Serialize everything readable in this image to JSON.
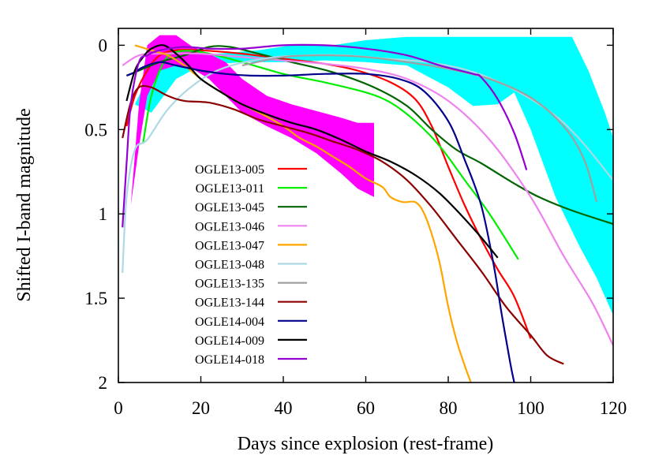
{
  "chart_data": {
    "type": "line",
    "xlabel": "Days since explosion (rest-frame)",
    "ylabel": "Shifted I-band magnitude",
    "xlim": [
      0,
      120
    ],
    "ylim": [
      2,
      -0.1
    ],
    "y_inverted": true,
    "x_ticks": [
      "0",
      "20",
      "40",
      "60",
      "80",
      "100",
      "120"
    ],
    "y_ticks": [
      "0",
      "0.5",
      "1",
      "1.5",
      "2"
    ],
    "grid": false,
    "legend_placement": "lower-left",
    "series": [
      {
        "name": "OGLE13-005",
        "color": "#ff0000",
        "points": [
          [
            2,
            0.48
          ],
          [
            4,
            0.3
          ],
          [
            7,
            0.15
          ],
          [
            10,
            0.06
          ],
          [
            14,
            0.03
          ],
          [
            20,
            0.03
          ],
          [
            30,
            0.05
          ],
          [
            40,
            0.08
          ],
          [
            50,
            0.11
          ],
          [
            58,
            0.15
          ],
          [
            66,
            0.22
          ],
          [
            72,
            0.32
          ],
          [
            76,
            0.48
          ],
          [
            80,
            0.72
          ],
          [
            84,
            0.95
          ],
          [
            88,
            1.15
          ],
          [
            92,
            1.33
          ],
          [
            96,
            1.49
          ],
          [
            100,
            1.74
          ]
        ]
      },
      {
        "name": "OGLE13-011",
        "color": "#00ee00",
        "points": [
          [
            6,
            0.58
          ],
          [
            8,
            0.3
          ],
          [
            11,
            0.1
          ],
          [
            14,
            0.04
          ],
          [
            20,
            0.04
          ],
          [
            30,
            0.1
          ],
          [
            40,
            0.17
          ],
          [
            50,
            0.22
          ],
          [
            60,
            0.28
          ],
          [
            66,
            0.34
          ],
          [
            72,
            0.45
          ],
          [
            78,
            0.6
          ],
          [
            84,
            0.8
          ],
          [
            90,
            1.0
          ],
          [
            97,
            1.27
          ]
        ]
      },
      {
        "name": "OGLE13-045",
        "color": "#006400",
        "points": [
          [
            2,
            0.18
          ],
          [
            5,
            0.15
          ],
          [
            10,
            0.1
          ],
          [
            16,
            0.06
          ],
          [
            22,
            0.01
          ],
          [
            27,
            0.01
          ],
          [
            34,
            0.05
          ],
          [
            42,
            0.1
          ],
          [
            52,
            0.16
          ],
          [
            62,
            0.25
          ],
          [
            70,
            0.36
          ],
          [
            76,
            0.5
          ],
          [
            82,
            0.62
          ],
          [
            88,
            0.7
          ],
          [
            96,
            0.82
          ],
          [
            102,
            0.9
          ],
          [
            110,
            0.98
          ],
          [
            120,
            1.06
          ]
        ]
      },
      {
        "name": "OGLE13-046",
        "color": "#ee82ee",
        "points": [
          [
            1,
            0.12
          ],
          [
            5,
            0.06
          ],
          [
            10,
            0.05
          ],
          [
            20,
            0.05
          ],
          [
            30,
            0.07
          ],
          [
            40,
            0.09
          ],
          [
            50,
            0.11
          ],
          [
            60,
            0.14
          ],
          [
            70,
            0.2
          ],
          [
            80,
            0.33
          ],
          [
            90,
            0.56
          ],
          [
            100,
            0.9
          ],
          [
            108,
            1.25
          ],
          [
            115,
            1.53
          ],
          [
            120,
            1.78
          ]
        ]
      },
      {
        "name": "OGLE13-047",
        "color": "#ffa500",
        "points": [
          [
            4,
            0.0
          ],
          [
            8,
            0.03
          ],
          [
            12,
            0.06
          ],
          [
            16,
            0.12
          ],
          [
            20,
            0.2
          ],
          [
            25,
            0.28
          ],
          [
            30,
            0.35
          ],
          [
            35,
            0.41
          ],
          [
            40,
            0.48
          ],
          [
            44,
            0.55
          ],
          [
            48,
            0.6
          ],
          [
            52,
            0.66
          ],
          [
            56,
            0.72
          ],
          [
            60,
            0.79
          ],
          [
            64,
            0.84
          ],
          [
            66,
            0.9
          ],
          [
            69,
            0.93
          ],
          [
            72,
            0.93
          ],
          [
            74,
            0.99
          ],
          [
            76,
            1.12
          ],
          [
            78,
            1.3
          ],
          [
            80,
            1.55
          ],
          [
            82,
            1.75
          ],
          [
            84,
            1.9
          ],
          [
            85.5,
            2.0
          ]
        ]
      },
      {
        "name": "OGLE13-048",
        "color": "#add8e6",
        "points": [
          [
            1,
            1.35
          ],
          [
            2,
            0.9
          ],
          [
            4,
            0.62
          ],
          [
            7,
            0.56
          ],
          [
            12,
            0.38
          ],
          [
            18,
            0.24
          ],
          [
            25,
            0.14
          ],
          [
            35,
            0.08
          ],
          [
            45,
            0.06
          ],
          [
            55,
            0.06
          ],
          [
            65,
            0.08
          ],
          [
            75,
            0.1
          ],
          [
            85,
            0.15
          ],
          [
            95,
            0.25
          ],
          [
            105,
            0.4
          ],
          [
            112,
            0.56
          ],
          [
            120,
            0.8
          ]
        ]
      },
      {
        "name": "OGLE13-135",
        "color": "#a0a0a0",
        "points": [
          [
            30,
            0.12
          ],
          [
            40,
            0.07
          ],
          [
            50,
            0.06
          ],
          [
            60,
            0.07
          ],
          [
            70,
            0.1
          ],
          [
            80,
            0.14
          ],
          [
            90,
            0.2
          ],
          [
            100,
            0.31
          ],
          [
            108,
            0.48
          ],
          [
            113,
            0.68
          ],
          [
            116,
            0.93
          ]
        ]
      },
      {
        "name": "OGLE13-144",
        "color": "#8b0000",
        "points": [
          [
            1,
            0.55
          ],
          [
            3,
            0.34
          ],
          [
            5,
            0.25
          ],
          [
            8,
            0.25
          ],
          [
            12,
            0.3
          ],
          [
            16,
            0.33
          ],
          [
            22,
            0.34
          ],
          [
            28,
            0.38
          ],
          [
            34,
            0.44
          ],
          [
            40,
            0.48
          ],
          [
            46,
            0.52
          ],
          [
            52,
            0.57
          ],
          [
            58,
            0.62
          ],
          [
            64,
            0.69
          ],
          [
            70,
            0.8
          ],
          [
            76,
            0.96
          ],
          [
            82,
            1.15
          ],
          [
            88,
            1.34
          ],
          [
            94,
            1.55
          ],
          [
            100,
            1.72
          ],
          [
            104,
            1.84
          ],
          [
            108,
            1.89
          ]
        ]
      },
      {
        "name": "OGLE14-004",
        "color": "#00008b",
        "points": [
          [
            2,
            0.18
          ],
          [
            4,
            0.16
          ],
          [
            6,
            0.13
          ],
          [
            10,
            0.1
          ],
          [
            14,
            0.12
          ],
          [
            20,
            0.15
          ],
          [
            26,
            0.17
          ],
          [
            32,
            0.18
          ],
          [
            40,
            0.18
          ],
          [
            50,
            0.17
          ],
          [
            60,
            0.17
          ],
          [
            68,
            0.2
          ],
          [
            74,
            0.27
          ],
          [
            80,
            0.45
          ],
          [
            84,
            0.68
          ],
          [
            88,
            0.95
          ],
          [
            91,
            1.3
          ],
          [
            93,
            1.6
          ],
          [
            95,
            1.88
          ],
          [
            96,
            2.0
          ]
        ]
      },
      {
        "name": "OGLE14-009",
        "color": "#000000",
        "points": [
          [
            2,
            0.33
          ],
          [
            4,
            0.15
          ],
          [
            6,
            0.07
          ],
          [
            8,
            0.02
          ],
          [
            11,
            0.0
          ],
          [
            14,
            0.05
          ],
          [
            17,
            0.12
          ],
          [
            20,
            0.2
          ],
          [
            25,
            0.28
          ],
          [
            30,
            0.35
          ],
          [
            36,
            0.41
          ],
          [
            42,
            0.46
          ],
          [
            48,
            0.5
          ],
          [
            54,
            0.56
          ],
          [
            60,
            0.63
          ],
          [
            66,
            0.69
          ],
          [
            72,
            0.77
          ],
          [
            78,
            0.88
          ],
          [
            84,
            1.03
          ],
          [
            88,
            1.14
          ],
          [
            92,
            1.26
          ]
        ]
      },
      {
        "name": "OGLE14-018",
        "color": "#9400d3",
        "points": [
          [
            1,
            1.08
          ],
          [
            2,
            0.7
          ],
          [
            3,
            0.35
          ],
          [
            5,
            0.1
          ],
          [
            7,
            0.06
          ],
          [
            10,
            0.03
          ],
          [
            16,
            0.01
          ],
          [
            22,
            0.02
          ],
          [
            30,
            0.02
          ],
          [
            40,
            0.0
          ],
          [
            50,
            0.0
          ],
          [
            60,
            0.02
          ],
          [
            70,
            0.06
          ],
          [
            78,
            0.12
          ],
          [
            86,
            0.17
          ],
          [
            88,
            0.19
          ],
          [
            92,
            0.32
          ],
          [
            96,
            0.52
          ],
          [
            99,
            0.74
          ]
        ]
      }
    ],
    "bands": [
      {
        "name": "",
        "color": "#00ffff",
        "upper": [
          [
            4,
            0.35
          ],
          [
            8,
            0.15
          ],
          [
            14,
            0.08
          ],
          [
            24,
            0.05
          ],
          [
            34,
            0.03
          ],
          [
            42,
            0.0
          ],
          [
            52,
            0.0
          ],
          [
            60,
            -0.03
          ],
          [
            70,
            -0.05
          ],
          [
            80,
            -0.05
          ],
          [
            90,
            -0.05
          ],
          [
            100,
            -0.05
          ],
          [
            110,
            -0.05
          ],
          [
            114,
            0.15
          ],
          [
            118,
            0.4
          ],
          [
            120,
            0.55
          ]
        ],
        "lower": [
          [
            120,
            1.6
          ],
          [
            116,
            1.38
          ],
          [
            112,
            1.2
          ],
          [
            106,
            0.9
          ],
          [
            100,
            0.5
          ],
          [
            96,
            0.28
          ],
          [
            92,
            0.35
          ],
          [
            86,
            0.36
          ],
          [
            80,
            0.25
          ],
          [
            70,
            0.12
          ],
          [
            60,
            0.1
          ],
          [
            50,
            0.09
          ],
          [
            40,
            0.1
          ],
          [
            30,
            0.1
          ],
          [
            20,
            0.12
          ],
          [
            14,
            0.2
          ],
          [
            8,
            0.4
          ],
          [
            4,
            0.35
          ]
        ]
      },
      {
        "name": "",
        "color": "#ff00ff",
        "upper": [
          [
            3,
            0.95
          ],
          [
            5,
            0.35
          ],
          [
            7,
            0.0
          ],
          [
            10,
            -0.06
          ],
          [
            14,
            -0.06
          ],
          [
            18,
            0.01
          ],
          [
            22,
            0.05
          ],
          [
            26,
            0.1
          ],
          [
            30,
            0.2
          ],
          [
            36,
            0.3
          ],
          [
            42,
            0.35
          ],
          [
            48,
            0.39
          ],
          [
            54,
            0.43
          ],
          [
            58,
            0.46
          ],
          [
            62,
            0.46
          ]
        ],
        "lower": [
          [
            62,
            0.9
          ],
          [
            58,
            0.85
          ],
          [
            54,
            0.76
          ],
          [
            48,
            0.64
          ],
          [
            42,
            0.55
          ],
          [
            36,
            0.48
          ],
          [
            30,
            0.4
          ],
          [
            26,
            0.3
          ],
          [
            22,
            0.2
          ],
          [
            18,
            0.14
          ],
          [
            14,
            0.12
          ],
          [
            10,
            0.15
          ],
          [
            7,
            0.3
          ],
          [
            5,
            0.6
          ],
          [
            3,
            0.95
          ]
        ]
      }
    ]
  }
}
